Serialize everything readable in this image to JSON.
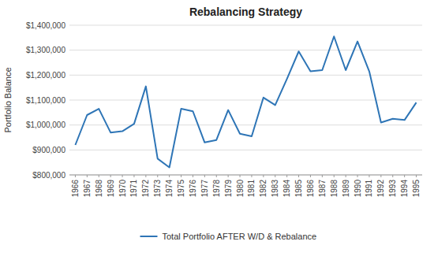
{
  "chart_data": {
    "type": "line",
    "title": "Rebalancing Strategy",
    "y_label": "Portfolio Balance",
    "x": [
      1966,
      1967,
      1968,
      1969,
      1970,
      1971,
      1972,
      1973,
      1974,
      1975,
      1976,
      1977,
      1978,
      1979,
      1980,
      1981,
      1982,
      1983,
      1984,
      1985,
      1986,
      1987,
      1988,
      1989,
      1990,
      1991,
      1992,
      1993,
      1994,
      1995
    ],
    "series": [
      {
        "name": "Total Portfolio AFTER W/D & Rebalance",
        "color": "#2E75B6",
        "values": [
          920000,
          1040000,
          1065000,
          970000,
          975000,
          1005000,
          1155000,
          865000,
          830000,
          1065000,
          1055000,
          930000,
          940000,
          1060000,
          965000,
          955000,
          1110000,
          1080000,
          1185000,
          1295000,
          1215000,
          1220000,
          1355000,
          1220000,
          1335000,
          1215000,
          1010000,
          1025000,
          1020000,
          1090000
        ]
      }
    ],
    "xlim": [
      1965.5,
      1995.5
    ],
    "xticks": [
      1966,
      1967,
      1968,
      1969,
      1970,
      1971,
      1972,
      1973,
      1974,
      1975,
      1976,
      1977,
      1978,
      1979,
      1980,
      1981,
      1982,
      1983,
      1984,
      1985,
      1986,
      1987,
      1988,
      1989,
      1990,
      1991,
      1992,
      1993,
      1994,
      1995
    ],
    "ylim": [
      800000,
      1400000
    ],
    "yticks": [
      {
        "value": 800000,
        "label": "$800,000"
      },
      {
        "value": 900000,
        "label": "$900,000"
      },
      {
        "value": 1000000,
        "label": "$1,000,000"
      },
      {
        "value": 1100000,
        "label": "$1,100,000"
      },
      {
        "value": 1200000,
        "label": "$1,200,000"
      },
      {
        "value": 1300000,
        "label": "$1,300,000"
      },
      {
        "value": 1400000,
        "label": "$1,400,000"
      }
    ],
    "grid": true,
    "legend": "bottom"
  }
}
